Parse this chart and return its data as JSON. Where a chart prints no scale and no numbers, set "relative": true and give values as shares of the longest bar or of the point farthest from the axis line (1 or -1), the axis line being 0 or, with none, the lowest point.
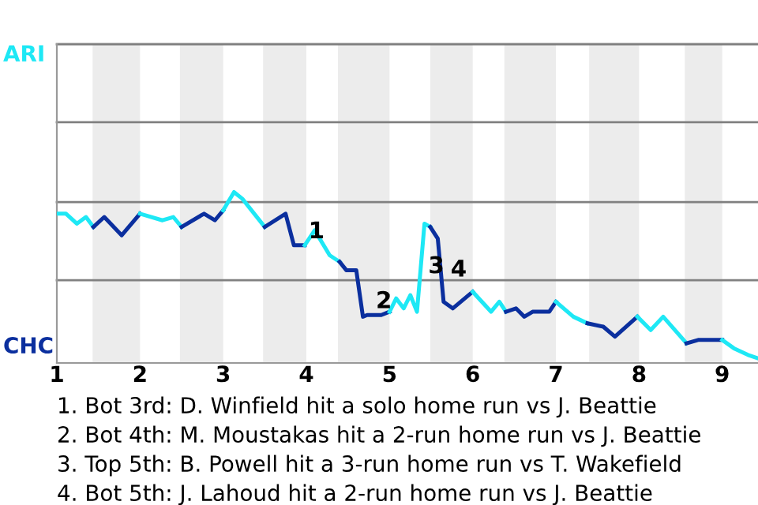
{
  "chart_data": {
    "type": "line",
    "relative": true,
    "series": [
      {
        "color": "#1ee8f5",
        "x": [
          1.0,
          1.11,
          1.24,
          1.35,
          1.44
        ],
        "values": [
          0.87,
          0.87,
          0.81,
          0.85,
          0.79
        ]
      },
      {
        "color": "#0b2f9e",
        "x": [
          1.44,
          1.57,
          1.78,
          2.0
        ],
        "values": [
          0.79,
          0.85,
          0.74,
          0.87
        ]
      },
      {
        "color": "#1ee8f5",
        "x": [
          2.0,
          2.27,
          2.4,
          2.5
        ],
        "values": [
          0.87,
          0.83,
          0.85,
          0.79
        ]
      },
      {
        "color": "#0b2f9e",
        "x": [
          2.5,
          2.77,
          2.9,
          3.0
        ],
        "values": [
          0.79,
          0.87,
          0.83,
          0.89
        ]
      },
      {
        "color": "#1ee8f5",
        "x": [
          3.0,
          3.13,
          3.23,
          3.5
        ],
        "values": [
          0.89,
          1.0,
          0.96,
          0.79
        ]
      },
      {
        "color": "#0b2f9e",
        "x": [
          3.5,
          3.75,
          3.85,
          3.92,
          3.98
        ],
        "values": [
          0.79,
          0.87,
          0.68,
          0.68,
          0.68
        ]
      },
      {
        "color": "#1ee8f5",
        "x": [
          3.98,
          4.1,
          4.28,
          4.4
        ],
        "values": [
          0.68,
          0.77,
          0.62,
          0.58
        ]
      },
      {
        "color": "#0b2f9e",
        "x": [
          4.4,
          4.48,
          4.6,
          4.68,
          4.73,
          4.9,
          5.0
        ],
        "values": [
          0.58,
          0.53,
          0.53,
          0.25,
          0.26,
          0.26,
          0.28
        ]
      },
      {
        "color": "#1ee8f5",
        "x": [
          5.0,
          5.08,
          5.17,
          5.25,
          5.33,
          5.42,
          5.49
        ],
        "values": [
          0.28,
          0.36,
          0.3,
          0.38,
          0.28,
          0.81,
          0.79
        ]
      },
      {
        "color": "#0b2f9e",
        "x": [
          5.49,
          5.58,
          5.65,
          5.76,
          6.0
        ],
        "values": [
          0.79,
          0.72,
          0.34,
          0.3,
          0.4
        ]
      },
      {
        "color": "#1ee8f5",
        "x": [
          6.0,
          6.22,
          6.32,
          6.4
        ],
        "values": [
          0.4,
          0.28,
          0.34,
          0.28
        ]
      },
      {
        "color": "#0b2f9e",
        "x": [
          6.4,
          6.52,
          6.62,
          6.72,
          6.92,
          7.0
        ],
        "values": [
          0.28,
          0.3,
          0.25,
          0.28,
          0.28,
          0.34
        ]
      },
      {
        "color": "#1ee8f5",
        "x": [
          7.0,
          7.21,
          7.38
        ],
        "values": [
          0.34,
          0.25,
          0.21
        ]
      },
      {
        "color": "#0b2f9e",
        "x": [
          7.38,
          7.57,
          7.71,
          7.98
        ],
        "values": [
          0.21,
          0.19,
          0.13,
          0.25
        ]
      },
      {
        "color": "#1ee8f5",
        "x": [
          7.98,
          8.14,
          8.29,
          8.57
        ],
        "values": [
          0.25,
          0.17,
          0.25,
          0.09
        ]
      },
      {
        "color": "#0b2f9e",
        "x": [
          8.57,
          8.71,
          9.0
        ],
        "values": [
          0.09,
          0.11,
          0.11
        ]
      },
      {
        "color": "#1ee8f5",
        "x": [
          9.0,
          9.14,
          9.31,
          9.43
        ],
        "values": [
          0.11,
          0.06,
          0.02,
          0.0
        ]
      }
    ],
    "xlim": [
      1,
      9.43
    ],
    "xticks": [
      1,
      2,
      3,
      4,
      5,
      6,
      7,
      8,
      9
    ],
    "ref_lines": [
      {
        "axis": "y",
        "value": 0.47,
        "color": "#808080"
      },
      {
        "axis": "y",
        "value": 0.94,
        "color": "#808080"
      },
      {
        "axis": "y",
        "value": 1.42,
        "color": "#808080"
      },
      {
        "axis": "y",
        "value": 1.89,
        "color": "#808080"
      }
    ],
    "marker": "none",
    "line_style": "solid",
    "bands": [
      {
        "axis": "x",
        "from": 1.43,
        "to": 2,
        "color": "#ececec"
      },
      {
        "axis": "x",
        "from": 2.48,
        "to": 3,
        "color": "#ececec"
      },
      {
        "axis": "x",
        "from": 3.48,
        "to": 4,
        "color": "#ececec"
      },
      {
        "axis": "x",
        "from": 4.38,
        "to": 5,
        "color": "#ececec"
      },
      {
        "axis": "x",
        "from": 5.49,
        "to": 6,
        "color": "#ececec"
      },
      {
        "axis": "x",
        "from": 6.38,
        "to": 7,
        "color": "#ececec"
      },
      {
        "axis": "x",
        "from": 7.4,
        "to": 8,
        "color": "#ececec"
      },
      {
        "axis": "x",
        "from": 8.55,
        "to": 9,
        "color": "#ececec"
      }
    ],
    "annotations": [
      "ARI",
      "CHC",
      {
        "text": "1",
        "x": 3.92,
        "y": 0.68
      },
      {
        "text": "2",
        "x": 4.73,
        "y": 0.26
      },
      {
        "text": "3",
        "x": 5.36,
        "y": 0.47
      },
      {
        "text": "4",
        "x": 5.63,
        "y": 0.45
      },
      "1. Bot 3rd: D. Winfield hit a solo home run vs J. Beattie",
      "2. Bot 4th: M. Moustakas hit a 2-run home run vs J. Beattie",
      "3. Top 5th: B. Powell hit a 3-run home run vs T. Wakefield",
      "4. Bot 5th: J. Lahoud hit a 2-run home run vs J. Beattie"
    ]
  }
}
